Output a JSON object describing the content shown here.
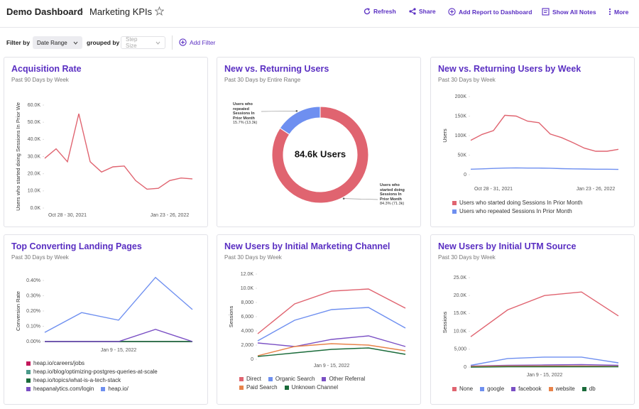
{
  "header": {
    "breadcrumb": "Demo Dashboard",
    "title": "Marketing KPIs",
    "actions": [
      "Refresh",
      "Share",
      "Add Report to Dashboard",
      "Show All Notes",
      "More"
    ]
  },
  "toolbar": {
    "filter_label": "Filter by",
    "filter_value": "Date Range",
    "group_label": "grouped by",
    "group_value": "Step Size",
    "add_filter": "Add Filter"
  },
  "chart_data": [
    {
      "type": "line",
      "title": "Acquisition Rate",
      "subtitle": "Past 90 Days by Week",
      "ylabel": "Users who started doing Sessions In Prior We",
      "categories": [
        null,
        null,
        "Oct 28 - 30, 2021",
        null,
        null,
        null,
        null,
        null,
        null,
        null,
        null,
        "Jan 23 - 26, 2022",
        null,
        null
      ],
      "values": [
        29000,
        34500,
        27000,
        55000,
        27000,
        21000,
        24000,
        24500,
        16000,
        11000,
        11500,
        16000,
        17500,
        17000
      ],
      "color": "#e06470",
      "ylim": [
        0,
        60000
      ],
      "yticks": [
        {
          "value": 0,
          "label": "0.0K"
        },
        {
          "value": 10000,
          "label": "10.0K"
        },
        {
          "value": 20000,
          "label": "20.0K"
        },
        {
          "value": 30000,
          "label": "30.0K"
        },
        {
          "value": 40000,
          "label": "40.0K"
        },
        {
          "value": 50000,
          "label": "50.0K"
        },
        {
          "value": 60000,
          "label": "60.0K"
        }
      ]
    },
    {
      "type": "pie",
      "title": "New vs. Returning Users",
      "subtitle": "Past 30 Days by Entire Range",
      "center_label": "84.6k Users",
      "categories": [
        "Users who repeated Sessions In Prior Month",
        "Users who started doing Sessions In Prior Month"
      ],
      "values": [
        15.7,
        84.3
      ],
      "value_labels": [
        "15.7% (13.3k)",
        "84.3% (71.3k)"
      ],
      "colors": [
        "#6e8ff0",
        "#e06470"
      ]
    },
    {
      "type": "line",
      "title": "New vs. Returning Users by Week",
      "subtitle": "Past 30 Days by Week",
      "ylabel": "Users",
      "categories": [
        null,
        null,
        "Oct 28 - 31, 2021",
        null,
        null,
        null,
        null,
        null,
        null,
        null,
        null,
        "Jan 23 - 26, 2022",
        null,
        null
      ],
      "series": [
        {
          "name": "Users who started doing Sessions In Prior Month",
          "color": "#e06470",
          "values": [
            88000,
            103000,
            113000,
            152000,
            150000,
            137000,
            133000,
            104000,
            95000,
            82000,
            68000,
            60000,
            60000,
            65000
          ]
        },
        {
          "name": "Users who repeated Sessions In Prior Month",
          "color": "#6e8ff0",
          "values": [
            14000,
            15000,
            16000,
            17000,
            17500,
            17000,
            17000,
            16500,
            15500,
            15000,
            14500,
            14000,
            14000,
            13500
          ]
        }
      ],
      "ylim": [
        0,
        200000
      ],
      "yticks": [
        0,
        {
          "value": 50000,
          "label": "50K"
        },
        {
          "value": 100000,
          "label": "100K"
        },
        {
          "value": 150000,
          "label": "150K"
        },
        {
          "value": 200000,
          "label": "200K"
        }
      ]
    },
    {
      "type": "line",
      "title": "Top Converting Landing Pages",
      "subtitle": "Past 30 Days by Week",
      "ylabel": "Conversion Rate",
      "categories": [
        null,
        null,
        "Jan 9 - 15, 2022",
        null,
        null
      ],
      "series": [
        {
          "name": "heap.io/careers/jobs",
          "color": "#c2185b",
          "values": [
            0,
            0,
            0,
            0,
            0
          ]
        },
        {
          "name": "heap.io/blog/optimizing-postgres-queries-at-scale",
          "color": "#4a9a8a",
          "values": [
            0,
            0,
            0,
            0,
            0
          ]
        },
        {
          "name": "heap.io/topics/what-is-a-tech-stack",
          "color": "#1a6b3a",
          "values": [
            0,
            0,
            0,
            0,
            0
          ]
        },
        {
          "name": "heapanalytics.com/login",
          "color": "#7a4fc4",
          "values": [
            0,
            0,
            0,
            0.08,
            0
          ]
        },
        {
          "name": "heap.io/",
          "color": "#6e8ff0",
          "values": [
            0.06,
            0.19,
            0.14,
            0.42,
            0.21
          ]
        }
      ],
      "ylim": [
        0,
        0.4
      ],
      "yticks": [
        {
          "value": 0,
          "label": "0.00%"
        },
        {
          "value": 0.1,
          "label": "0.10%"
        },
        {
          "value": 0.2,
          "label": "0.20%"
        },
        {
          "value": 0.3,
          "label": "0.30%"
        },
        {
          "value": 0.4,
          "label": "0.40%"
        }
      ]
    },
    {
      "type": "line",
      "title": "New Users by Initial Marketing Channel",
      "subtitle": "Past 30 Days by Week",
      "ylabel": "Sessions",
      "categories": [
        null,
        null,
        "Jan 9 - 15, 2022",
        null,
        null
      ],
      "series": [
        {
          "name": "Direct",
          "color": "#e06470",
          "values": [
            3600,
            7800,
            9600,
            9900,
            7200
          ]
        },
        {
          "name": "Organic Search",
          "color": "#6e8ff0",
          "values": [
            2600,
            5500,
            7000,
            7300,
            4400
          ]
        },
        {
          "name": "Other Referral",
          "color": "#7a4fc4",
          "values": [
            2300,
            1800,
            2800,
            3300,
            1800
          ]
        },
        {
          "name": "Paid Search",
          "color": "#e8834a",
          "values": [
            500,
            1800,
            2200,
            2000,
            1200
          ]
        },
        {
          "name": "Unknown Channel",
          "color": "#1a6b3a",
          "values": [
            400,
            900,
            1400,
            1600,
            700
          ]
        }
      ],
      "ylim": [
        0,
        12000
      ],
      "yticks": [
        0,
        {
          "value": 2000,
          "label": "2,000"
        },
        {
          "value": 4000,
          "label": "4,000"
        },
        {
          "value": 6000,
          "label": "6,000"
        },
        {
          "value": 8000,
          "label": "8,000"
        },
        {
          "value": 10000,
          "label": "10.0K"
        },
        {
          "value": 12000,
          "label": "12.0K"
        }
      ]
    },
    {
      "type": "line",
      "title": "New Users by Initial UTM Source",
      "subtitle": "Past 30 Days by Week",
      "ylabel": "Sessions",
      "categories": [
        null,
        null,
        "Jan 9 - 15, 2022",
        null,
        null
      ],
      "series": [
        {
          "name": "None",
          "color": "#e06470",
          "values": [
            8500,
            16000,
            20000,
            21000,
            14300
          ]
        },
        {
          "name": "google",
          "color": "#6e8ff0",
          "values": [
            500,
            2400,
            2800,
            2800,
            1200
          ]
        },
        {
          "name": "facebook",
          "color": "#7a4fc4",
          "values": [
            300,
            500,
            600,
            700,
            500
          ]
        },
        {
          "name": "website",
          "color": "#e8834a",
          "values": [
            200,
            300,
            300,
            300,
            200
          ]
        },
        {
          "name": "db",
          "color": "#1a6b3a",
          "values": [
            0,
            100,
            100,
            100,
            100
          ]
        }
      ],
      "ylim": [
        0,
        25000
      ],
      "yticks": [
        0,
        {
          "value": 5000,
          "label": "5,000"
        },
        {
          "value": 10000,
          "label": "10.0K"
        },
        {
          "value": 15000,
          "label": "15.0K"
        },
        {
          "value": 20000,
          "label": "20.0K"
        },
        {
          "value": 25000,
          "label": "25.0K"
        }
      ]
    }
  ]
}
